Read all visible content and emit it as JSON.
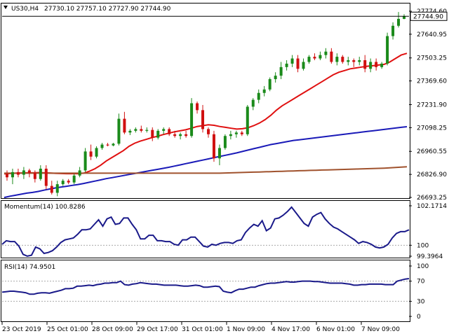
{
  "header": {
    "symbol": "US30,H4",
    "ohlc": "27730.10 27757.10 27727.90 27744.90"
  },
  "price_tag": "27744.90",
  "price_axis": [
    "27774.60",
    "27640.95",
    "27503.25",
    "27369.60",
    "27231.90",
    "27098.25",
    "26960.55",
    "26826.90",
    "26693.25"
  ],
  "momentum": {
    "label": "Momentum(14) 100.8286",
    "ticks": [
      "102.1714",
      "100",
      "99.3964"
    ]
  },
  "rsi": {
    "label": "RSI(14) 74.9501",
    "ticks": [
      "100",
      "70",
      "30",
      "0"
    ]
  },
  "x_axis": [
    "23 Oct 2019",
    "25 Oct 01:00",
    "28 Oct 09:00",
    "29 Oct 17:00",
    "31 Oct 01:00",
    "1 Nov 09:00",
    "4 Nov 17:00",
    "6 Nov 01:00",
    "7 Nov 09:00"
  ],
  "colors": {
    "bull": "#1a8a1a",
    "bear": "#d01010",
    "ma_fast": "#e01010",
    "ma_mid": "#1a1ab8",
    "ma_slow": "#a0522d",
    "indicator": "#1a1a8a",
    "grid": "#aaaaaa",
    "frame": "#000000"
  },
  "chart_data": [
    {
      "type": "candlestick",
      "title": "US30,H4",
      "ylim": [
        26693.25,
        27774.6
      ],
      "ohlc": [
        [
          26830,
          26850,
          26790,
          26810
        ],
        [
          26810,
          26860,
          26770,
          26840
        ],
        [
          26840,
          26860,
          26810,
          26825
        ],
        [
          26825,
          26870,
          26800,
          26850
        ],
        [
          26850,
          26860,
          26810,
          26835
        ],
        [
          26835,
          26850,
          26780,
          26800
        ],
        [
          26800,
          26880,
          26790,
          26860
        ],
        [
          26860,
          26880,
          26740,
          26760
        ],
        [
          26760,
          26790,
          26710,
          26720
        ],
        [
          26720,
          26790,
          26700,
          26770
        ],
        [
          26770,
          26800,
          26760,
          26790
        ],
        [
          26790,
          26800,
          26770,
          26780
        ],
        [
          26780,
          26830,
          26770,
          26820
        ],
        [
          26820,
          26870,
          26810,
          26850
        ],
        [
          26850,
          26980,
          26840,
          26960
        ],
        [
          26960,
          27000,
          26910,
          26930
        ],
        [
          26930,
          26990,
          26920,
          26980
        ],
        [
          26980,
          27010,
          26970,
          27000
        ],
        [
          27000,
          27010,
          26990,
          26995
        ],
        [
          26995,
          27010,
          26990,
          27005
        ],
        [
          27005,
          27180,
          26995,
          27150
        ],
        [
          27150,
          27190,
          27060,
          27070
        ],
        [
          27070,
          27090,
          27055,
          27080
        ],
        [
          27080,
          27100,
          27070,
          27090
        ],
        [
          27090,
          27110,
          27070,
          27080
        ],
        [
          27080,
          27100,
          27070,
          27085
        ],
        [
          27085,
          27100,
          27020,
          27040
        ],
        [
          27040,
          27090,
          27030,
          27080
        ],
        [
          27080,
          27100,
          27060,
          27090
        ],
        [
          27090,
          27100,
          27050,
          27060
        ],
        [
          27060,
          27080,
          27040,
          27050
        ],
        [
          27050,
          27070,
          27030,
          27060
        ],
        [
          27060,
          27080,
          27040,
          27050
        ],
        [
          27050,
          27270,
          27040,
          27240
        ],
        [
          27240,
          27250,
          27180,
          27200
        ],
        [
          27200,
          27230,
          27070,
          27090
        ],
        [
          27090,
          27100,
          27040,
          27060
        ],
        [
          27060,
          27080,
          26900,
          26920
        ],
        [
          26920,
          27000,
          26880,
          26980
        ],
        [
          26980,
          27060,
          26970,
          27050
        ],
        [
          27050,
          27080,
          27030,
          27060
        ],
        [
          27060,
          27080,
          27040,
          27070
        ],
        [
          27070,
          27080,
          27050,
          27060
        ],
        [
          27060,
          27230,
          27050,
          27220
        ],
        [
          27220,
          27270,
          27200,
          27260
        ],
        [
          27260,
          27320,
          27240,
          27300
        ],
        [
          27300,
          27340,
          27280,
          27320
        ],
        [
          27320,
          27390,
          27310,
          27380
        ],
        [
          27380,
          27420,
          27360,
          27400
        ],
        [
          27400,
          27480,
          27380,
          27450
        ],
        [
          27450,
          27490,
          27430,
          27470
        ],
        [
          27470,
          27520,
          27450,
          27500
        ],
        [
          27500,
          27520,
          27420,
          27440
        ],
        [
          27440,
          27500,
          27430,
          27480
        ],
        [
          27480,
          27520,
          27470,
          27510
        ],
        [
          27510,
          27530,
          27490,
          27500
        ],
        [
          27500,
          27540,
          27490,
          27520
        ],
        [
          27520,
          27560,
          27500,
          27540
        ],
        [
          27540,
          27560,
          27470,
          27480
        ],
        [
          27480,
          27530,
          27460,
          27510
        ],
        [
          27510,
          27520,
          27470,
          27480
        ],
        [
          27480,
          27510,
          27460,
          27490
        ],
        [
          27490,
          27500,
          27450,
          27480
        ],
        [
          27480,
          27510,
          27460,
          27490
        ],
        [
          27490,
          27520,
          27420,
          27440
        ],
        [
          27440,
          27500,
          27420,
          27480
        ],
        [
          27480,
          27500,
          27430,
          27450
        ],
        [
          27450,
          27480,
          27440,
          27470
        ],
        [
          27470,
          27650,
          27460,
          27630
        ],
        [
          27630,
          27710,
          27610,
          27690
        ],
        [
          27690,
          27770,
          27680,
          27730
        ],
        [
          27730,
          27757,
          27728,
          27745
        ]
      ],
      "series": [
        {
          "name": "",
          "values": [
            26830,
            26832,
            26834,
            26835,
            26836,
            26836,
            26837,
            26836,
            26835,
            26833,
            26832,
            26831,
            26831,
            26831,
            26834,
            26845,
            26860,
            26880,
            26905,
            26925,
            26945,
            26965,
            26990,
            27008,
            27020,
            27030,
            27040,
            27048,
            27058,
            27066,
            27074,
            27080,
            27086,
            27095,
            27105,
            27110,
            27115,
            27112,
            27105,
            27100,
            27095,
            27090,
            27092,
            27098,
            27110,
            27125,
            27145,
            27170,
            27200,
            27225,
            27245,
            27265,
            27285,
            27305,
            27325,
            27345,
            27365,
            27385,
            27405,
            27420,
            27430,
            27440,
            27445,
            27450,
            27455,
            27458,
            27462,
            27466,
            27480,
            27500,
            27520,
            27530
          ]
        },
        {
          "name": "",
          "values": [
            26693,
            26700,
            26706,
            26712,
            26718,
            26722,
            26728,
            26735,
            26742,
            26748,
            26753,
            26758,
            26763,
            26768,
            26774,
            26781,
            26788,
            26795,
            26802,
            26808,
            26814,
            26820,
            26826,
            26832,
            26838,
            26844,
            26850,
            26856,
            26862,
            26868,
            26875,
            26882,
            26889,
            26896,
            26903,
            26910,
            26917,
            26924,
            26931,
            26938,
            26945,
            26952,
            26960,
            26968,
            26976,
            26984,
            26992,
            27000,
            27006,
            27012,
            27018,
            27024,
            27028,
            27032,
            27036,
            27040,
            27044,
            27048,
            27052,
            27056,
            27060,
            27064,
            27068,
            27072,
            27076,
            27080,
            27084,
            27088,
            27092,
            27096,
            27100,
            27104
          ]
        },
        {
          "name": "",
          "values": [
            26834,
            26834,
            26834,
            26834,
            26834,
            26834,
            26834,
            26834,
            26834,
            26834,
            26834,
            26834,
            26834,
            26834,
            26834,
            26834,
            26834,
            26834,
            26834,
            26834,
            26834,
            26834,
            26834,
            26834,
            26834,
            26834,
            26834,
            26834,
            26834,
            26834,
            26834,
            26834,
            26834,
            26834,
            26834,
            26834,
            26834,
            26834,
            26834,
            26835,
            26836,
            26837,
            26838,
            26839,
            26840,
            26841,
            26842,
            26843,
            26844,
            26845,
            26846,
            26847,
            26848,
            26849,
            26850,
            26851,
            26852,
            26853,
            26854,
            26855,
            26856,
            26857,
            26858,
            26859,
            26860,
            26861,
            26862,
            26863,
            26865,
            26867,
            26869,
            26871
          ]
        }
      ]
    },
    {
      "type": "line",
      "title": "Momentum(14) 100.8286",
      "ylim": [
        99.3964,
        102.1714
      ],
      "series": [
        {
          "name": "",
          "values": [
            100.05,
            100.25,
            100.2,
            100.2,
            99.95,
            99.5,
            99.4,
            99.45,
            99.9,
            99.8,
            99.55,
            99.6,
            99.7,
            99.9,
            100.15,
            100.3,
            100.35,
            100.4,
            100.6,
            100.85,
            100.85,
            100.9,
            101.15,
            101.4,
            101.05,
            101.45,
            101.55,
            101.15,
            101.2,
            101.5,
            101.5,
            101.15,
            100.85,
            100.35,
            100.35,
            100.55,
            100.55,
            100.25,
            100.25,
            100.2,
            100.2,
            100.05,
            100.0,
            100.3,
            100.3,
            100.45,
            100.45,
            100.2,
            99.95,
            99.9,
            100.05,
            100.0,
            100.1,
            100.15,
            100.15,
            100.1,
            100.25,
            100.3,
            100.7,
            100.95,
            101.15,
            101.05,
            101.35,
            100.8,
            100.95,
            101.45,
            101.5,
            101.65,
            101.85,
            102.1,
            101.8,
            101.5,
            101.2,
            101.05,
            101.55,
            101.7,
            101.8,
            101.45,
            101.2,
            101.0,
            100.9,
            100.75,
            100.6,
            100.45,
            100.3,
            100.1,
            100.2,
            100.15,
            100.05,
            99.9,
            99.85,
            99.9,
            100.05,
            100.4,
            100.65,
            100.75,
            100.75,
            100.85
          ]
        }
      ]
    },
    {
      "type": "line",
      "title": "RSI(14) 74.9501",
      "ylim": [
        0,
        100
      ],
      "series": [
        {
          "name": "",
          "values": [
            48,
            49,
            50,
            50,
            49,
            48,
            47,
            44,
            44,
            46,
            47,
            47,
            46,
            48,
            50,
            52,
            55,
            55,
            56,
            60,
            60,
            61,
            62,
            61,
            63,
            64,
            66,
            66,
            67,
            67,
            70,
            63,
            62,
            64,
            65,
            67,
            66,
            65,
            64,
            64,
            63,
            62,
            62,
            62,
            62,
            61,
            60,
            60,
            61,
            62,
            61,
            58,
            58,
            59,
            60,
            59,
            50,
            48,
            47,
            51,
            54,
            54,
            56,
            58,
            58,
            61,
            63,
            65,
            66,
            66,
            67,
            68,
            69,
            68,
            68,
            69,
            70,
            70,
            70,
            69,
            69,
            68,
            67,
            66,
            66,
            66,
            66,
            65,
            64,
            62,
            62,
            63,
            63,
            64,
            64,
            64,
            64,
            63,
            63,
            63,
            70,
            72,
            74,
            75
          ]
        }
      ]
    }
  ]
}
